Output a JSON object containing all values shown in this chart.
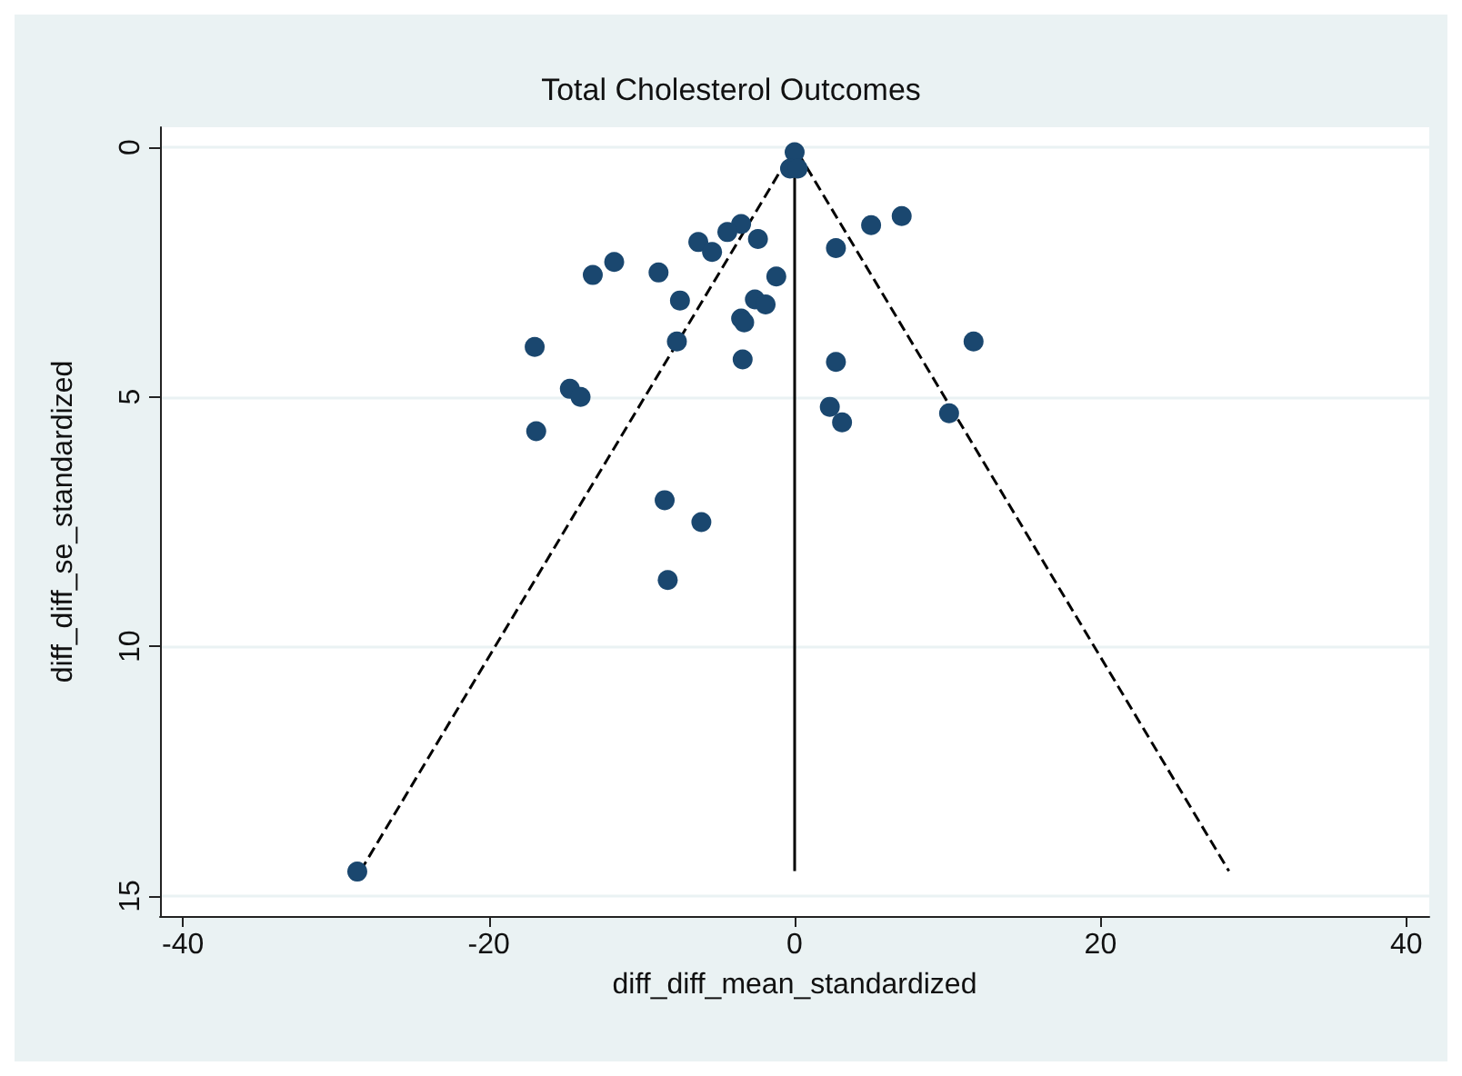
{
  "chart_data": {
    "type": "scatter",
    "title": "Total Cholesterol Outcomes",
    "xlabel": "diff_diff_mean_standardized",
    "ylabel": "diff_diff_se_standardized",
    "xlim": [
      -41.5,
      41.5
    ],
    "ylim": [
      15.4,
      -0.4
    ],
    "xticks": [
      -40,
      -20,
      0,
      20,
      40
    ],
    "yticks": [
      0,
      5,
      10,
      15
    ],
    "grid": "y",
    "series": [
      {
        "marker": "circle",
        "color": "#1a476f",
        "x": [
          0,
          -0.3,
          0.2,
          -3.5,
          -4.4,
          -2.4,
          -6.3,
          -5.4,
          5.0,
          7.0,
          2.7,
          -11.8,
          -13.2,
          -8.9,
          -1.2,
          -7.5,
          -2.6,
          -1.9,
          -3.5,
          -3.3,
          -7.7,
          -17.0,
          11.7,
          -3.4,
          2.7,
          -14.7,
          -14.0,
          2.3,
          3.1,
          10.1,
          -16.9,
          -8.5,
          -6.1,
          -8.3,
          -28.6
        ],
        "values": [
          0.1,
          0.43,
          0.43,
          1.54,
          1.7,
          1.84,
          1.9,
          2.1,
          1.56,
          1.38,
          2.02,
          2.3,
          2.56,
          2.51,
          2.59,
          3.07,
          3.05,
          3.15,
          3.43,
          3.51,
          3.89,
          4.0,
          3.89,
          4.25,
          4.3,
          4.84,
          5.0,
          5.2,
          5.51,
          5.33,
          5.69,
          7.07,
          7.51,
          8.67,
          14.51
        ]
      },
      {
        "type": "line",
        "marker": "none",
        "color": "#000000",
        "line_style": "dashed",
        "x": [
          -28.4,
          0,
          28.4
        ],
        "values": [
          14.5,
          0,
          14.5
        ]
      },
      {
        "type": "line",
        "marker": "none",
        "color": "#000000",
        "line_style": "solid",
        "x": [
          0,
          0
        ],
        "values": [
          0,
          14.5
        ]
      }
    ]
  }
}
